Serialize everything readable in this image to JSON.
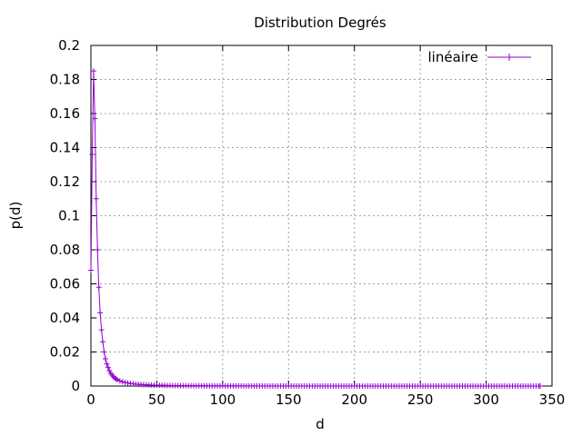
{
  "chart_data": {
    "type": "line",
    "title": "Distribution Degrés",
    "xlabel": "d",
    "ylabel": "p(d)",
    "xlim": [
      0,
      350
    ],
    "ylim": [
      0,
      0.2
    ],
    "x_ticks": [
      0,
      50,
      100,
      150,
      200,
      250,
      300,
      350
    ],
    "y_ticks": [
      0,
      0.02,
      0.04,
      0.06,
      0.08,
      0.1,
      0.12,
      0.14,
      0.16,
      0.18,
      0.2
    ],
    "grid": true,
    "legend_position": "top-right",
    "series": [
      {
        "name": "linéaire",
        "color": "#9400d3",
        "marker": "plus",
        "points": [
          [
            0,
            0.068
          ],
          [
            1,
            0.136
          ],
          [
            2,
            0.185
          ],
          [
            3,
            0.157
          ],
          [
            4,
            0.11
          ],
          [
            5,
            0.08
          ],
          [
            6,
            0.058
          ],
          [
            7,
            0.043
          ],
          [
            8,
            0.033
          ],
          [
            9,
            0.026
          ],
          [
            10,
            0.02
          ],
          [
            11,
            0.016
          ],
          [
            12,
            0.013
          ],
          [
            13,
            0.011
          ],
          [
            14,
            0.009
          ],
          [
            15,
            0.0075
          ],
          [
            16,
            0.0065
          ],
          [
            17,
            0.0055
          ],
          [
            18,
            0.0048
          ],
          [
            19,
            0.0042
          ],
          [
            20,
            0.0037
          ],
          [
            22,
            0.003
          ],
          [
            24,
            0.0025
          ],
          [
            26,
            0.0021
          ],
          [
            28,
            0.0018
          ],
          [
            30,
            0.0015
          ],
          [
            33,
            0.0012
          ],
          [
            36,
            0.001
          ],
          [
            40,
            0.0008
          ],
          [
            45,
            0.0006
          ],
          [
            50,
            0.0005
          ],
          [
            55,
            0.0004
          ],
          [
            60,
            0.0003
          ],
          [
            66,
            0.00025
          ],
          [
            72,
            0.0002
          ],
          [
            80,
            0.00015
          ],
          [
            90,
            0.0001
          ],
          [
            100,
            8e-05
          ],
          [
            115,
            5e-05
          ],
          [
            130,
            3e-05
          ],
          [
            150,
            2e-05
          ],
          [
            175,
            1e-05
          ],
          [
            200,
            1e-05
          ],
          [
            250,
            0.0
          ],
          [
            300,
            0.0
          ],
          [
            341,
            0.0
          ]
        ]
      }
    ]
  }
}
